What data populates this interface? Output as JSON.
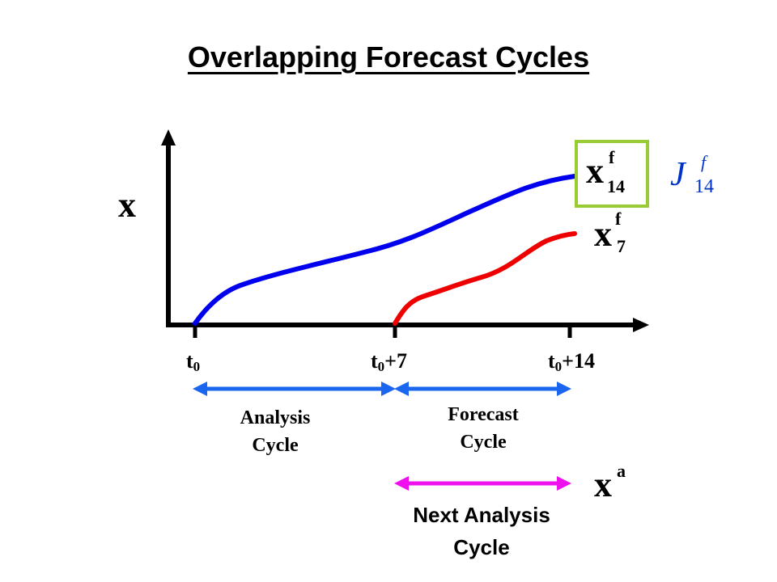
{
  "title": "Overlapping Forecast Cycles",
  "axis": {
    "y_label": "x",
    "ticks": [
      {
        "main": "t",
        "sub": "0",
        "suffix": ""
      },
      {
        "main": "t",
        "sub": "0",
        "suffix": "+7"
      },
      {
        "main": "t",
        "sub": "0",
        "suffix": "+14"
      }
    ]
  },
  "curves": {
    "forecast_14": {
      "color": "#0000ee",
      "label_base": "x",
      "label_sup": "f",
      "label_sub": "14",
      "boxed": true,
      "box_color": "#99cc33"
    },
    "forecast_7": {
      "color": "#ee0000",
      "label_base": "x",
      "label_sup": "f",
      "label_sub": "7"
    }
  },
  "cost_function": {
    "base": "J",
    "sup": "f",
    "sub": "14",
    "color": "#0033cc"
  },
  "cycles": {
    "analysis": {
      "line1": "Analysis",
      "line2": "Cycle",
      "color": "#1a66ee"
    },
    "forecast": {
      "line1": "Forecast",
      "line2": "Cycle",
      "color": "#1a66ee"
    },
    "next_analysis": {
      "line1": "Next Analysis",
      "line2": "Cycle",
      "color": "#ee11ee",
      "label_base": "x",
      "label_sup": "a"
    }
  }
}
